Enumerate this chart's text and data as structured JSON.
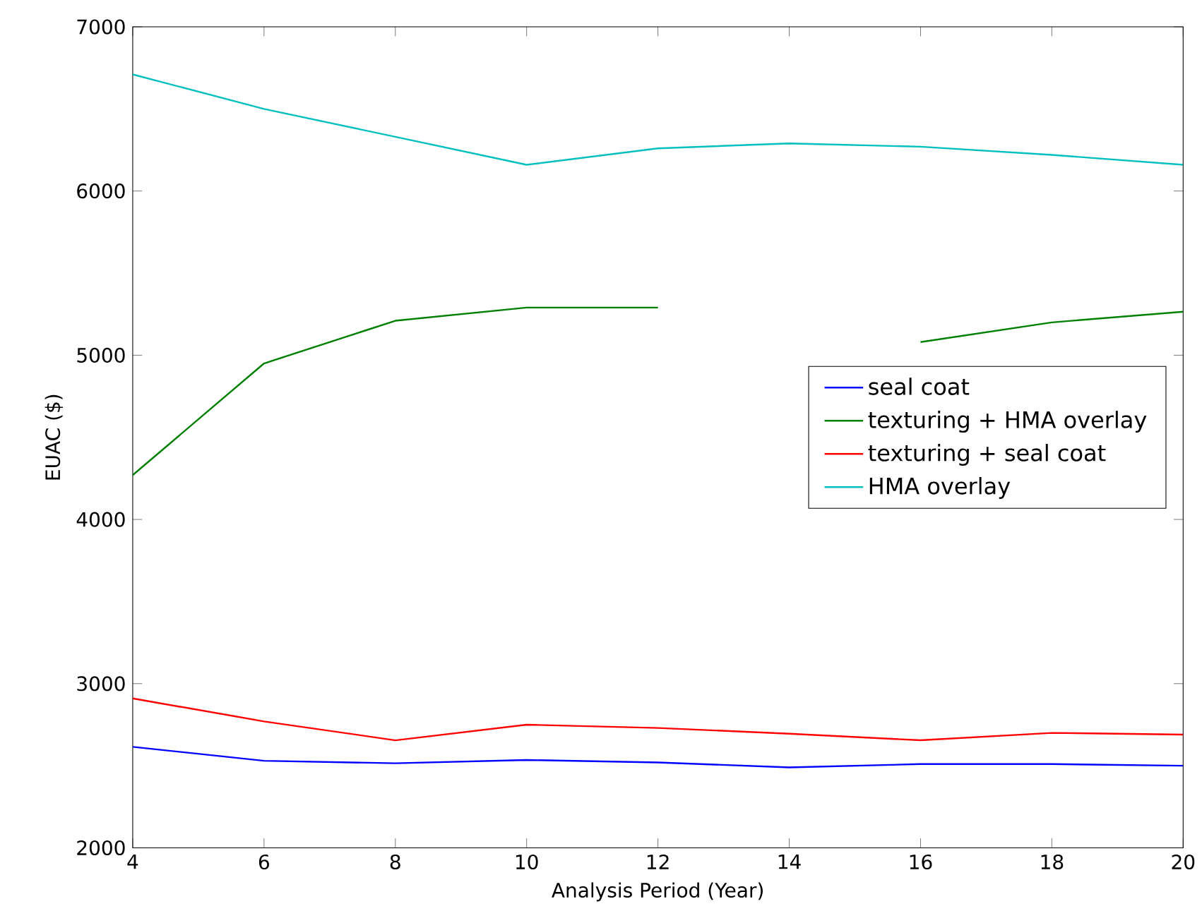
{
  "chart_data": {
    "type": "line",
    "xlabel": "Analysis Period (Year)",
    "ylabel": "EUAC ($)",
    "x": [
      4,
      6,
      8,
      10,
      12,
      14,
      16,
      18,
      20
    ],
    "series": [
      {
        "name": "seal coat",
        "color": "#0000ff",
        "values": [
          2615,
          2530,
          2515,
          2535,
          2520,
          2490,
          2510,
          2510,
          2500
        ]
      },
      {
        "name": "texturing + HMA overlay",
        "color": "#008000",
        "values": [
          4270,
          4950,
          5210,
          5290,
          5290,
          null,
          5080,
          5200,
          5265
        ]
      },
      {
        "name": "texturing + seal coat",
        "color": "#ff0000",
        "values": [
          2910,
          2770,
          2655,
          2750,
          2730,
          2695,
          2655,
          2700,
          2690
        ]
      },
      {
        "name": "HMA overlay",
        "color": "#00bfbf",
        "values": [
          6710,
          6500,
          6330,
          6160,
          6260,
          6290,
          6270,
          6220,
          6160
        ]
      }
    ],
    "xlim": [
      4,
      20
    ],
    "ylim": [
      2000,
      7000
    ],
    "xticks": [
      4,
      6,
      8,
      10,
      12,
      14,
      16,
      18,
      20
    ],
    "yticks": [
      2000,
      3000,
      4000,
      5000,
      6000,
      7000
    ],
    "legend": "right",
    "grid": false,
    "marker": "none",
    "line_style": "solid"
  }
}
